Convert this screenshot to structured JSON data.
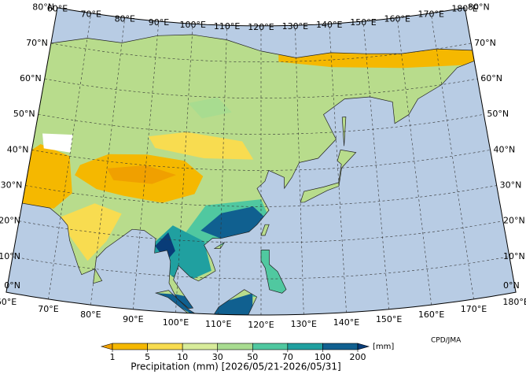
{
  "map": {
    "lon_labels": [
      "60°E",
      "70°E",
      "80°E",
      "90°E",
      "100°E",
      "110°E",
      "120°E",
      "130°E",
      "140°E",
      "150°E",
      "160°E",
      "170°E",
      "180°E"
    ],
    "lat_labels": [
      "0°N",
      "10°N",
      "20°N",
      "30°N",
      "40°N",
      "50°N",
      "60°N",
      "70°N",
      "80°N"
    ]
  },
  "legend": {
    "title": "Precipitation (mm) [2026/05/21-2026/05/31]",
    "unit": "[mm]",
    "ticks": [
      1,
      5,
      10,
      30,
      50,
      70,
      100,
      200
    ],
    "colors": [
      "#f0a000",
      "#f5b800",
      "#f8dc50",
      "#d8ec9a",
      "#a8dc90",
      "#50c8a0",
      "#20a0a0",
      "#106090",
      "#083c78"
    ]
  },
  "credit": "CPD/JMA"
}
